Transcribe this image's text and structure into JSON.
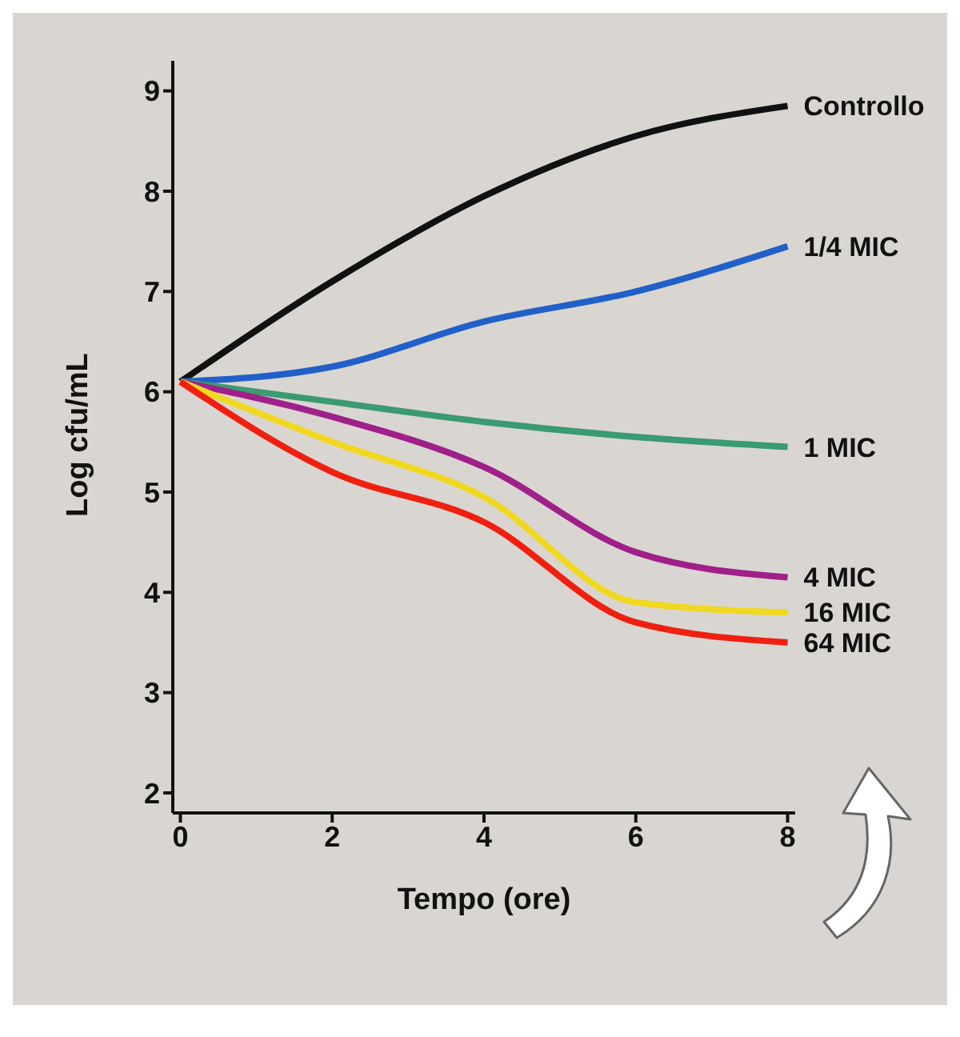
{
  "chart_data": {
    "type": "line",
    "xlabel": "Tempo (ore)",
    "ylabel": "Log cfu/mL",
    "x": [
      0,
      2,
      4,
      6,
      8
    ],
    "series": [
      {
        "name": "Controllo",
        "color": "#111111",
        "values": [
          6.1,
          7.1,
          7.95,
          8.55,
          8.85
        ]
      },
      {
        "name": "1/4 MIC",
        "color": "#2060c8",
        "values": [
          6.1,
          6.25,
          6.7,
          7.0,
          7.45
        ]
      },
      {
        "name": "1 MIC",
        "color": "#3a9a70",
        "values": [
          6.1,
          5.9,
          5.7,
          5.55,
          5.45
        ]
      },
      {
        "name": "4 MIC",
        "color": "#a0208a",
        "values": [
          6.1,
          5.75,
          5.25,
          4.4,
          4.15
        ]
      },
      {
        "name": "16 MIC",
        "color": "#f0d820",
        "values": [
          6.1,
          5.5,
          4.95,
          3.9,
          3.8
        ]
      },
      {
        "name": "64 MIC",
        "color": "#f02010",
        "values": [
          6.1,
          5.2,
          4.7,
          3.7,
          3.5
        ]
      }
    ],
    "xlim": [
      -0.1,
      8.1
    ],
    "xticks": [
      0,
      2,
      4,
      6,
      8
    ],
    "ylim": [
      1.8,
      9.3
    ],
    "yticks": [
      2,
      3,
      4,
      5,
      6,
      7,
      8,
      9
    ],
    "grid": false,
    "legend": false,
    "marker": "none",
    "line_style": "solid"
  }
}
